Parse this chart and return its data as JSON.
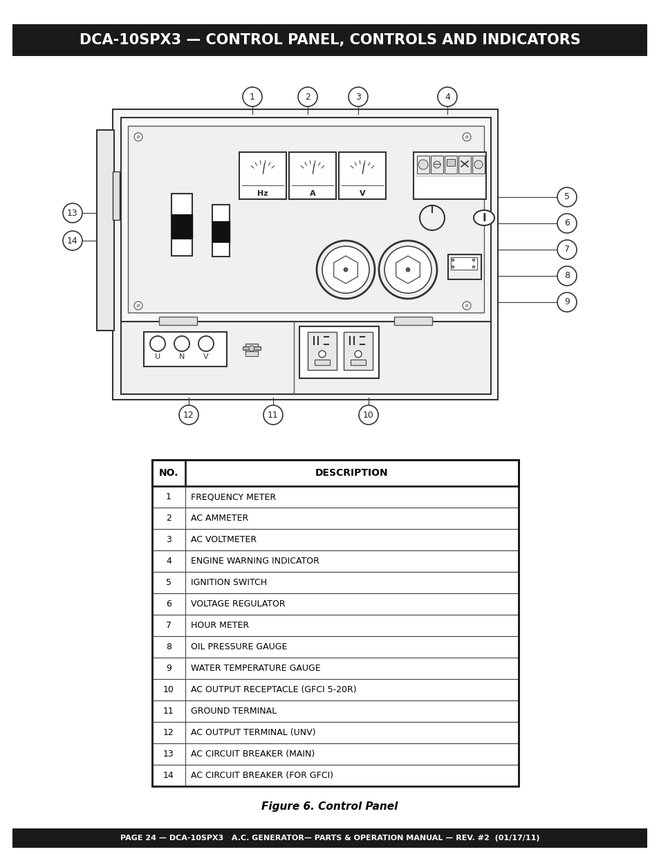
{
  "title": "DCA-10SPX3 — CONTROL PANEL, CONTROLS AND INDICATORS",
  "footer": "PAGE 24 — DCA-10SPX3   A.C. GENERATOR— PARTS & OPERATION MANUAL — REV. #2  (01/17/11)",
  "figure_caption": "Figure 6. Control Panel",
  "table_headers": [
    "NO.",
    "DESCRIPTION"
  ],
  "table_rows": [
    [
      "1",
      "FREQUENCY METER"
    ],
    [
      "2",
      "AC AMMETER"
    ],
    [
      "3",
      "AC VOLTMETER"
    ],
    [
      "4",
      "ENGINE WARNING INDICATOR"
    ],
    [
      "5",
      "IGNITION SWITCH"
    ],
    [
      "6",
      "VOLTAGE REGULATOR"
    ],
    [
      "7",
      "HOUR METER"
    ],
    [
      "8",
      "OIL PRESSURE GAUGE"
    ],
    [
      "9",
      "WATER TEMPERATURE GAUGE"
    ],
    [
      "10",
      "AC OUTPUT RECEPTACLE (GFCI 5-20R)"
    ],
    [
      "11",
      "GROUND TERMINAL"
    ],
    [
      "12",
      "AC OUTPUT TERMINAL (UNV)"
    ],
    [
      "13",
      "AC CIRCUIT BREAKER (MAIN)"
    ],
    [
      "14",
      "AC CIRCUIT BREAKER (FOR GFCI)"
    ]
  ],
  "bg_color": "#ffffff",
  "header_bg": "#1a1a1a",
  "header_fg": "#ffffff",
  "footer_bg": "#1a1a1a",
  "footer_fg": "#ffffff"
}
